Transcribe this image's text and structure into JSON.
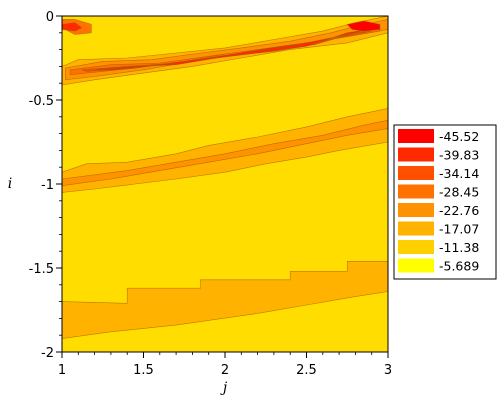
{
  "chart_data": {
    "type": "heatmap",
    "title": "",
    "xlabel": "j",
    "ylabel": "i",
    "xlim": [
      1,
      3
    ],
    "ylim": [
      -2,
      0
    ],
    "x_ticks": [
      "1",
      "1.5",
      "2",
      "2.5",
      "3"
    ],
    "x_tick_values": [
      1,
      1.5,
      2,
      2.5,
      3
    ],
    "y_ticks": [
      "0",
      "-0.5",
      "-1",
      "-1.5",
      "-2"
    ],
    "y_tick_values": [
      0,
      -0.5,
      -1,
      -1.5,
      -2
    ],
    "legend_placement": "right",
    "background_color": "#ffdd00",
    "legend": [
      {
        "label": "-45.52",
        "color": "#ff0000"
      },
      {
        "label": "-39.83",
        "color": "#ff2a00"
      },
      {
        "label": "-34.14",
        "color": "#ff5000"
      },
      {
        "label": "-28.45",
        "color": "#ff7200"
      },
      {
        "label": "-22.76",
        "color": "#ff9200"
      },
      {
        "label": "-17.07",
        "color": "#ffb200"
      },
      {
        "label": "-11.38",
        "color": "#ffd000"
      },
      {
        "label": "-5.689",
        "color": "#ffff00"
      }
    ],
    "regions": [
      {
        "level": "-17.07",
        "color": "#ffb200",
        "x": [
          1.0,
          1.4,
          1.4,
          1.85,
          1.85,
          2.4,
          2.4,
          2.75,
          2.75,
          3.0,
          3.0,
          2.8,
          2.5,
          2.2,
          1.7,
          1.3,
          1.0
        ],
        "y": [
          -1.7,
          -1.71,
          -1.62,
          -1.62,
          -1.57,
          -1.57,
          -1.52,
          -1.52,
          -1.46,
          -1.46,
          -1.64,
          -1.67,
          -1.72,
          -1.77,
          -1.84,
          -1.88,
          -1.92
        ]
      },
      {
        "level": "-17.07",
        "color": "#ffb200",
        "x": [
          1.0,
          1.15,
          1.4,
          1.7,
          1.9,
          2.2,
          2.5,
          2.75,
          3.0,
          3.0,
          2.7,
          2.5,
          2.25,
          2.0,
          1.7,
          1.45,
          1.2,
          1.0
        ],
        "y": [
          -0.93,
          -0.88,
          -0.87,
          -0.82,
          -0.77,
          -0.72,
          -0.66,
          -0.6,
          -0.55,
          -0.75,
          -0.8,
          -0.84,
          -0.88,
          -0.93,
          -0.97,
          -1.0,
          -1.03,
          -1.05
        ]
      },
      {
        "level": "-22.76",
        "color": "#ff9200",
        "x": [
          1.0,
          1.4,
          1.7,
          2.0,
          2.3,
          2.6,
          2.85,
          3.0,
          3.0,
          2.75,
          2.5,
          2.2,
          1.9,
          1.6,
          1.3,
          1.0
        ],
        "y": [
          -0.97,
          -0.92,
          -0.87,
          -0.82,
          -0.76,
          -0.71,
          -0.65,
          -0.62,
          -0.67,
          -0.71,
          -0.76,
          -0.82,
          -0.87,
          -0.92,
          -0.97,
          -1.01
        ]
      },
      {
        "level": "-17.07",
        "color": "#ffb200",
        "x": [
          1.0,
          1.1,
          1.4,
          1.7,
          2.0,
          2.3,
          2.6,
          2.8,
          3.0,
          3.0,
          2.75,
          2.4,
          2.1,
          1.8,
          1.5,
          1.2,
          1.0
        ],
        "y": [
          -0.3,
          -0.26,
          -0.25,
          -0.22,
          -0.19,
          -0.14,
          -0.09,
          -0.04,
          0.0,
          -0.1,
          -0.16,
          -0.2,
          -0.25,
          -0.3,
          -0.34,
          -0.38,
          -0.41
        ]
      },
      {
        "level": "-22.76",
        "color": "#ff9200",
        "x": [
          1.02,
          1.25,
          1.55,
          1.85,
          2.1,
          2.4,
          2.65,
          2.85,
          3.0,
          3.0,
          2.7,
          2.4,
          2.1,
          1.8,
          1.5,
          1.2,
          1.02
        ],
        "y": [
          -0.31,
          -0.27,
          -0.26,
          -0.22,
          -0.19,
          -0.15,
          -0.1,
          -0.05,
          -0.02,
          -0.08,
          -0.13,
          -0.18,
          -0.22,
          -0.27,
          -0.32,
          -0.36,
          -0.38
        ]
      },
      {
        "level": "-28.45",
        "color": "#ff7200",
        "x": [
          1.05,
          1.3,
          1.6,
          1.9,
          2.2,
          2.5,
          2.75,
          2.95,
          2.95,
          2.65,
          2.35,
          2.05,
          1.75,
          1.45,
          1.15,
          1.05
        ],
        "y": [
          -0.32,
          -0.29,
          -0.28,
          -0.24,
          -0.2,
          -0.17,
          -0.11,
          -0.06,
          -0.09,
          -0.14,
          -0.18,
          -0.22,
          -0.27,
          -0.31,
          -0.34,
          -0.35
        ]
      },
      {
        "level": "-34.14",
        "color": "#ff5000",
        "x": [
          1.12,
          1.4,
          1.7,
          2.0,
          2.3,
          2.55,
          2.8,
          2.9,
          2.65,
          2.35,
          2.05,
          1.75,
          1.45,
          1.15
        ],
        "y": [
          -0.32,
          -0.3,
          -0.28,
          -0.24,
          -0.21,
          -0.17,
          -0.1,
          -0.09,
          -0.14,
          -0.18,
          -0.23,
          -0.27,
          -0.31,
          -0.33
        ]
      },
      {
        "level": "-39.83",
        "color": "#ff2a00",
        "x": [
          1.2,
          1.45,
          1.7,
          1.95,
          2.2,
          2.5,
          2.75,
          2.88,
          2.7,
          2.45,
          2.15,
          1.9,
          1.6,
          1.3
        ],
        "y": [
          -0.32,
          -0.3,
          -0.29,
          -0.25,
          -0.22,
          -0.18,
          -0.1,
          -0.08,
          -0.12,
          -0.17,
          -0.21,
          -0.25,
          -0.29,
          -0.32
        ]
      },
      {
        "level": "-45.52",
        "color": "#ff0000",
        "x": [
          2.75,
          2.85,
          2.95,
          2.95,
          2.85,
          2.78
        ],
        "y": [
          -0.05,
          -0.03,
          -0.05,
          -0.08,
          -0.09,
          -0.08
        ]
      },
      {
        "level": "-28.45",
        "color": "#ff7200",
        "x": [
          1.0,
          1.08,
          1.18,
          1.18,
          1.08,
          1.0
        ],
        "y": [
          -0.02,
          -0.02,
          -0.05,
          -0.1,
          -0.11,
          -0.07
        ]
      },
      {
        "level": "-39.83",
        "color": "#ff2a00",
        "x": [
          1.0,
          1.08,
          1.12,
          1.08,
          1.0
        ],
        "y": [
          -0.05,
          -0.04,
          -0.07,
          -0.09,
          -0.08
        ]
      }
    ]
  }
}
